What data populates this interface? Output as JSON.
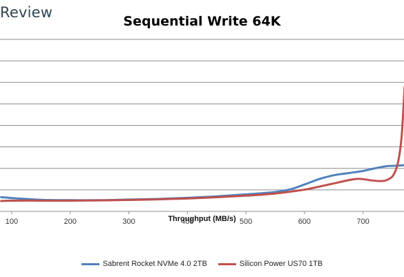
{
  "brand": {
    "text": "Review"
  },
  "chart_data": {
    "type": "line",
    "title": "Sequential Write 64K",
    "xlabel": "Throughput (MB/s)",
    "ylabel": "",
    "xlim": [
      80,
      770
    ],
    "xticks": [
      100,
      200,
      300,
      400,
      500,
      600,
      700
    ],
    "ylim": [
      0,
      8
    ],
    "grid": "horizontal",
    "legend": "bottom",
    "series": [
      {
        "name": "Sabrent Rocket NVMe 4.0 2TB",
        "color": "#4f81bd",
        "points": [
          [
            82,
            0.66
          ],
          [
            100,
            0.62
          ],
          [
            150,
            0.54
          ],
          [
            200,
            0.52
          ],
          [
            250,
            0.52
          ],
          [
            300,
            0.55
          ],
          [
            350,
            0.58
          ],
          [
            400,
            0.63
          ],
          [
            450,
            0.7
          ],
          [
            500,
            0.79
          ],
          [
            550,
            0.9
          ],
          [
            575,
            1.02
          ],
          [
            600,
            1.25
          ],
          [
            625,
            1.5
          ],
          [
            650,
            1.68
          ],
          [
            675,
            1.78
          ],
          [
            700,
            1.88
          ],
          [
            720,
            2.0
          ],
          [
            740,
            2.1
          ],
          [
            755,
            2.12
          ],
          [
            770,
            2.15
          ]
        ]
      },
      {
        "name": "Silicon Power US70 1TB",
        "color": "#c0504d",
        "points": [
          [
            82,
            0.48
          ],
          [
            100,
            0.5
          ],
          [
            150,
            0.5
          ],
          [
            200,
            0.5
          ],
          [
            250,
            0.51
          ],
          [
            300,
            0.53
          ],
          [
            350,
            0.56
          ],
          [
            400,
            0.6
          ],
          [
            450,
            0.66
          ],
          [
            500,
            0.73
          ],
          [
            550,
            0.83
          ],
          [
            600,
            1.01
          ],
          [
            625,
            1.15
          ],
          [
            650,
            1.3
          ],
          [
            675,
            1.45
          ],
          [
            690,
            1.51
          ],
          [
            700,
            1.5
          ],
          [
            715,
            1.44
          ],
          [
            730,
            1.41
          ],
          [
            740,
            1.45
          ],
          [
            750,
            1.62
          ],
          [
            757,
            2.0
          ],
          [
            762,
            2.6
          ],
          [
            766,
            3.5
          ],
          [
            769,
            4.8
          ],
          [
            771,
            5.8
          ]
        ]
      }
    ]
  }
}
